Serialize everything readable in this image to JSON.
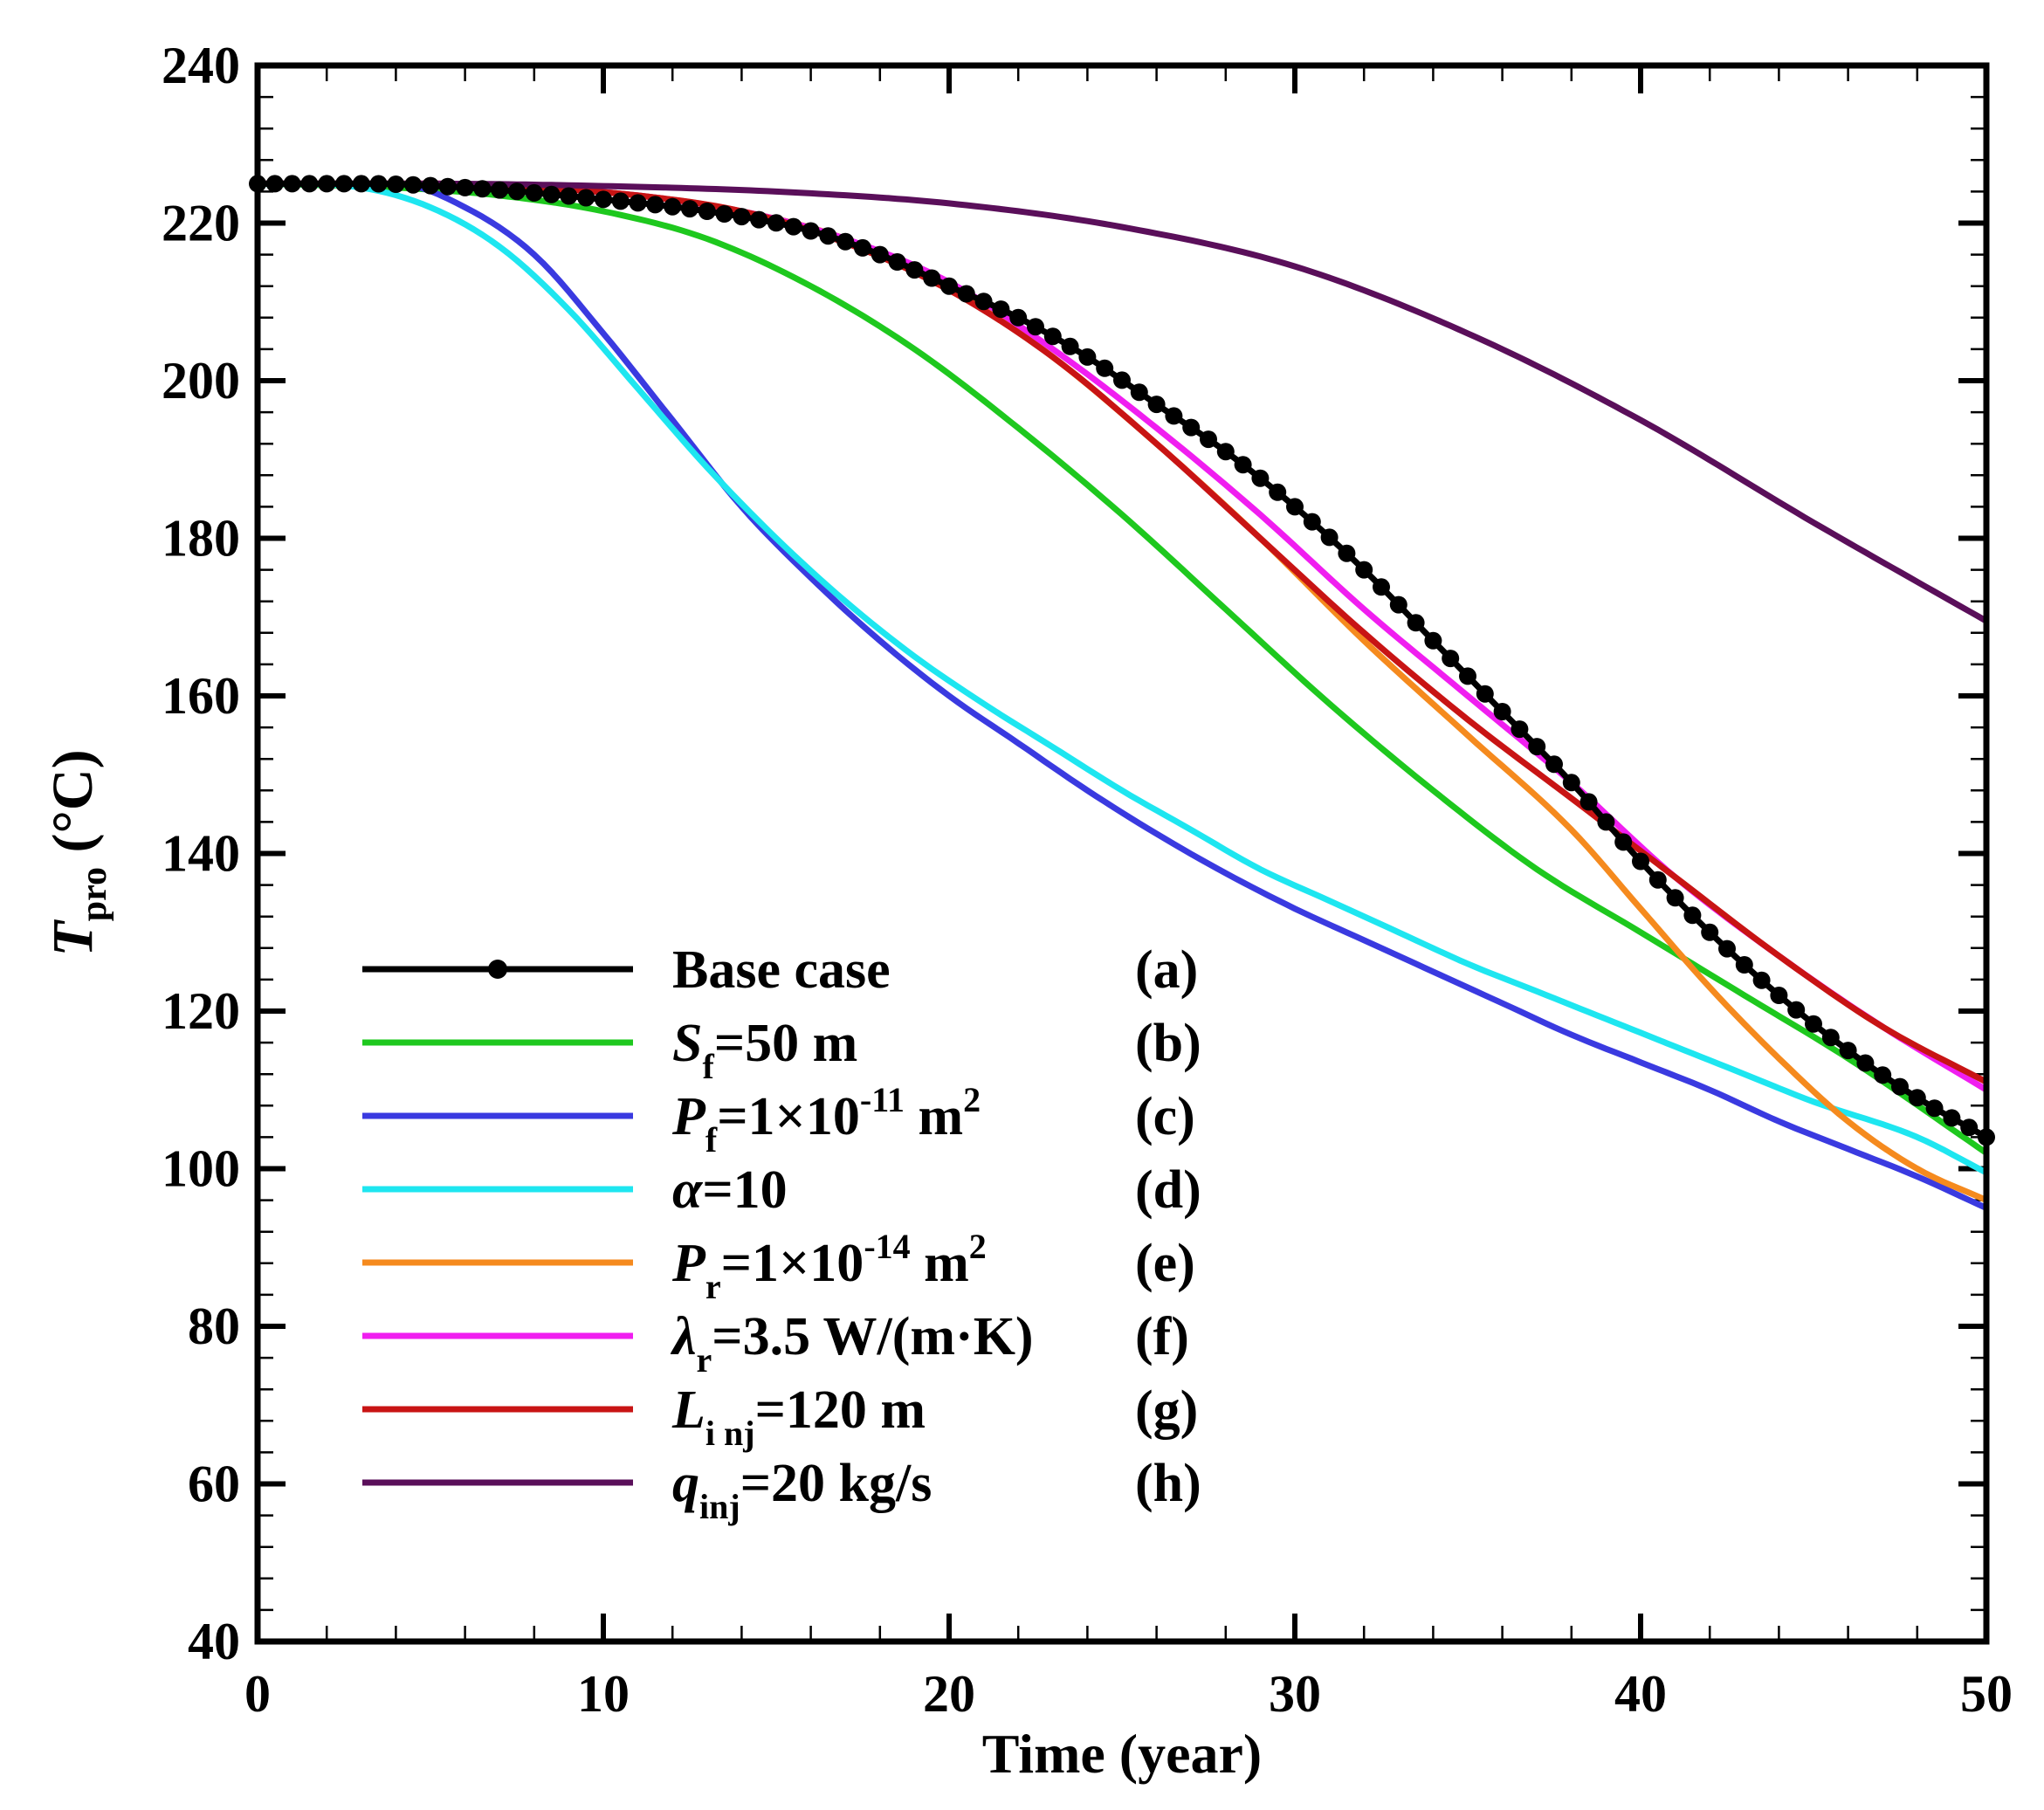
{
  "chart_data": {
    "type": "line",
    "title": "",
    "xlabel": "Time (year)",
    "ylabel": {
      "symbol": "T",
      "subscript": "pro",
      "unit": " (°C)"
    },
    "xlim": [
      0,
      50
    ],
    "ylim": [
      40,
      240
    ],
    "xticks": [
      "0",
      "10",
      "20",
      "30",
      "40",
      "50"
    ],
    "yticks": [
      "40",
      "60",
      "80",
      "100",
      "120",
      "140",
      "160",
      "180",
      "200",
      "220",
      "240"
    ],
    "legend_position": "bottom-left",
    "series": [
      {
        "name": "Base case",
        "legend": {
          "sym": "",
          "sub": "",
          "rest": "Base case",
          "tag": "(a)"
        },
        "color": "#000000",
        "markers": true,
        "points": [
          [
            0,
            225
          ],
          [
            3,
            225
          ],
          [
            6,
            224.5
          ],
          [
            10,
            223
          ],
          [
            13,
            221.5
          ],
          [
            16,
            219
          ],
          [
            18,
            216
          ],
          [
            20,
            212
          ],
          [
            22,
            208
          ],
          [
            24,
            203
          ],
          [
            26,
            197
          ],
          [
            28,
            191
          ],
          [
            30,
            184
          ],
          [
            32,
            176
          ],
          [
            34,
            167
          ],
          [
            36,
            158
          ],
          [
            38,
            149
          ],
          [
            40,
            139
          ],
          [
            42,
            130
          ],
          [
            44,
            122
          ],
          [
            46,
            115
          ],
          [
            48,
            109
          ],
          [
            50,
            104
          ]
        ]
      },
      {
        "name": "Sf=50 m",
        "legend": {
          "sym": "S",
          "sub": "f",
          "rest": "=50 m",
          "tag": "(b)"
        },
        "color": "#1ec81e",
        "markers": false,
        "points": [
          [
            0,
            225
          ],
          [
            4,
            224.5
          ],
          [
            7,
            223.5
          ],
          [
            10,
            221.5
          ],
          [
            13,
            218
          ],
          [
            16,
            212
          ],
          [
            19,
            204
          ],
          [
            22,
            194
          ],
          [
            25,
            183
          ],
          [
            28,
            171
          ],
          [
            31,
            159
          ],
          [
            34,
            148
          ],
          [
            37,
            138
          ],
          [
            40,
            130
          ],
          [
            43,
            122
          ],
          [
            46,
            114
          ],
          [
            50,
            102
          ]
        ]
      },
      {
        "name": "Pf=1×10-11 m2",
        "legend": {
          "sym": "P",
          "sub": "f",
          "rest": "=1×10",
          "sup": "-11",
          "rest2": " m",
          "sup2": "2",
          "tag": "(c)"
        },
        "color": "#3a3ae0",
        "markers": false,
        "points": [
          [
            0,
            225
          ],
          [
            4,
            225
          ],
          [
            6,
            222
          ],
          [
            8,
            216
          ],
          [
            10,
            206
          ],
          [
            12,
            195
          ],
          [
            14,
            184
          ],
          [
            16,
            175
          ],
          [
            18,
            167
          ],
          [
            20,
            160
          ],
          [
            22,
            154
          ],
          [
            24,
            148
          ],
          [
            26,
            142.5
          ],
          [
            28,
            137.5
          ],
          [
            30,
            133
          ],
          [
            32,
            129
          ],
          [
            34,
            125
          ],
          [
            36,
            121
          ],
          [
            38,
            117
          ],
          [
            40,
            113.5
          ],
          [
            42,
            110
          ],
          [
            44,
            106
          ],
          [
            46,
            102.5
          ],
          [
            48,
            99
          ],
          [
            50,
            95
          ]
        ]
      },
      {
        "name": "α=10",
        "legend": {
          "sym": "α",
          "sub": "",
          "rest": "=10",
          "tag": "(d)"
        },
        "color": "#1ee6f0",
        "markers": false,
        "points": [
          [
            0,
            225
          ],
          [
            3,
            224.5
          ],
          [
            5,
            222
          ],
          [
            7,
            217
          ],
          [
            9,
            209
          ],
          [
            11,
            199
          ],
          [
            13,
            189
          ],
          [
            15,
            180
          ],
          [
            17,
            172
          ],
          [
            19,
            165
          ],
          [
            21,
            159
          ],
          [
            23,
            153.5
          ],
          [
            25,
            148
          ],
          [
            27,
            143
          ],
          [
            29,
            138
          ],
          [
            31,
            134
          ],
          [
            33,
            130
          ],
          [
            35,
            126
          ],
          [
            37,
            122.5
          ],
          [
            39,
            119
          ],
          [
            41,
            115.5
          ],
          [
            43,
            112
          ],
          [
            45,
            108.5
          ],
          [
            48,
            104
          ],
          [
            50,
            99.5
          ]
        ]
      },
      {
        "name": "Pr=1×10-14 m2",
        "legend": {
          "sym": "P",
          "sub": "r",
          "rest": "=1×10",
          "sup": "-14",
          "rest2": " m",
          "sup2": "2",
          "tag": "(e)"
        },
        "color": "#f58a1e",
        "markers": false,
        "points": [
          [
            0,
            225
          ],
          [
            5,
            225
          ],
          [
            8,
            224.5
          ],
          [
            11,
            223.5
          ],
          [
            14,
            221.5
          ],
          [
            17,
            218
          ],
          [
            20,
            212
          ],
          [
            23,
            203
          ],
          [
            26,
            192
          ],
          [
            29,
            180
          ],
          [
            32,
            167
          ],
          [
            35,
            155
          ],
          [
            38,
            143
          ],
          [
            40,
            133
          ],
          [
            42,
            123
          ],
          [
            44,
            114
          ],
          [
            46,
            106
          ],
          [
            48,
            100
          ],
          [
            50,
            96
          ]
        ]
      },
      {
        "name": "λr=3.5 W/(m·K)",
        "legend": {
          "sym": "λ",
          "sub": "r",
          "rest": "=3.5 W/(m·K)",
          "tag": "(f)"
        },
        "color": "#f01ef0",
        "markers": false,
        "points": [
          [
            0,
            225
          ],
          [
            5,
            225
          ],
          [
            8,
            224.5
          ],
          [
            11,
            223.5
          ],
          [
            14,
            221.5
          ],
          [
            17,
            218
          ],
          [
            20,
            212.5
          ],
          [
            23,
            204
          ],
          [
            26,
            194
          ],
          [
            29,
            183
          ],
          [
            32,
            171
          ],
          [
            35,
            160
          ],
          [
            38,
            149
          ],
          [
            41,
            137
          ],
          [
            44,
            127
          ],
          [
            47,
            118
          ],
          [
            50,
            110
          ]
        ]
      },
      {
        "name": "Linj=120 m",
        "legend": {
          "sym": "L",
          "sub": "i nj",
          "rest": "=120 m",
          "tag": "(g)"
        },
        "color": "#c81414",
        "markers": false,
        "points": [
          [
            0,
            225
          ],
          [
            5,
            225
          ],
          [
            8,
            224.5
          ],
          [
            11,
            223.5
          ],
          [
            14,
            221.5
          ],
          [
            17,
            217.5
          ],
          [
            20,
            211.5
          ],
          [
            23,
            203
          ],
          [
            26,
            192
          ],
          [
            29,
            180
          ],
          [
            32,
            168
          ],
          [
            35,
            157
          ],
          [
            38,
            147
          ],
          [
            41,
            137
          ],
          [
            44,
            127
          ],
          [
            47,
            118
          ],
          [
            50,
            111
          ]
        ]
      },
      {
        "name": "qinj=20 kg/s",
        "legend": {
          "sym": "q",
          "sub": "inj",
          "rest": "=20 kg/s",
          "tag": "(h)"
        },
        "color": "#5a0f5a",
        "markers": false,
        "points": [
          [
            0,
            225
          ],
          [
            5,
            225
          ],
          [
            10,
            224.7
          ],
          [
            15,
            224
          ],
          [
            20,
            222.5
          ],
          [
            25,
            219.5
          ],
          [
            30,
            214.5
          ],
          [
            35,
            206
          ],
          [
            40,
            195
          ],
          [
            45,
            182
          ],
          [
            50,
            169.5
          ]
        ]
      }
    ]
  }
}
